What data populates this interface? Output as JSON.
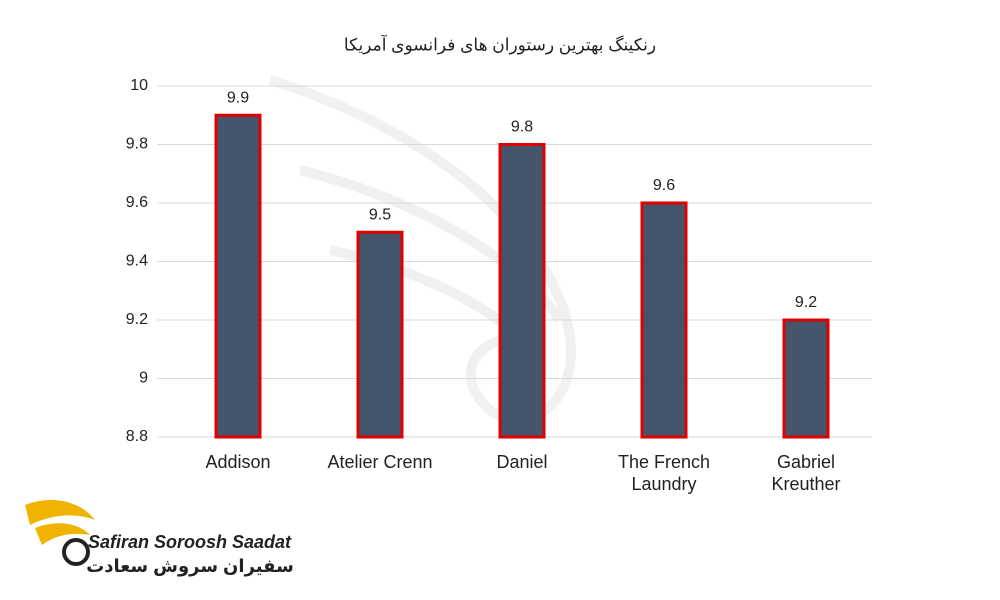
{
  "chart_data": {
    "type": "bar",
    "title": "رنکینگ بهترین رستوران های فرانسوی آمریکا",
    "categories": [
      "Addison",
      "Atelier Crenn",
      "Daniel",
      "The French Laundry",
      "Gabriel Kreuther"
    ],
    "values": [
      9.9,
      9.5,
      9.8,
      9.6,
      9.2
    ],
    "color": "#44546a",
    "edge_color": "#e00000",
    "ylim": [
      8.8,
      10
    ],
    "yticks": [
      8.8,
      9,
      9.2,
      9.4,
      9.6,
      9.8,
      10
    ],
    "grid": true
  },
  "logo": {
    "latin": "Safiran Soroosh Saadat",
    "persian": "سفیران سروش سعادت"
  }
}
